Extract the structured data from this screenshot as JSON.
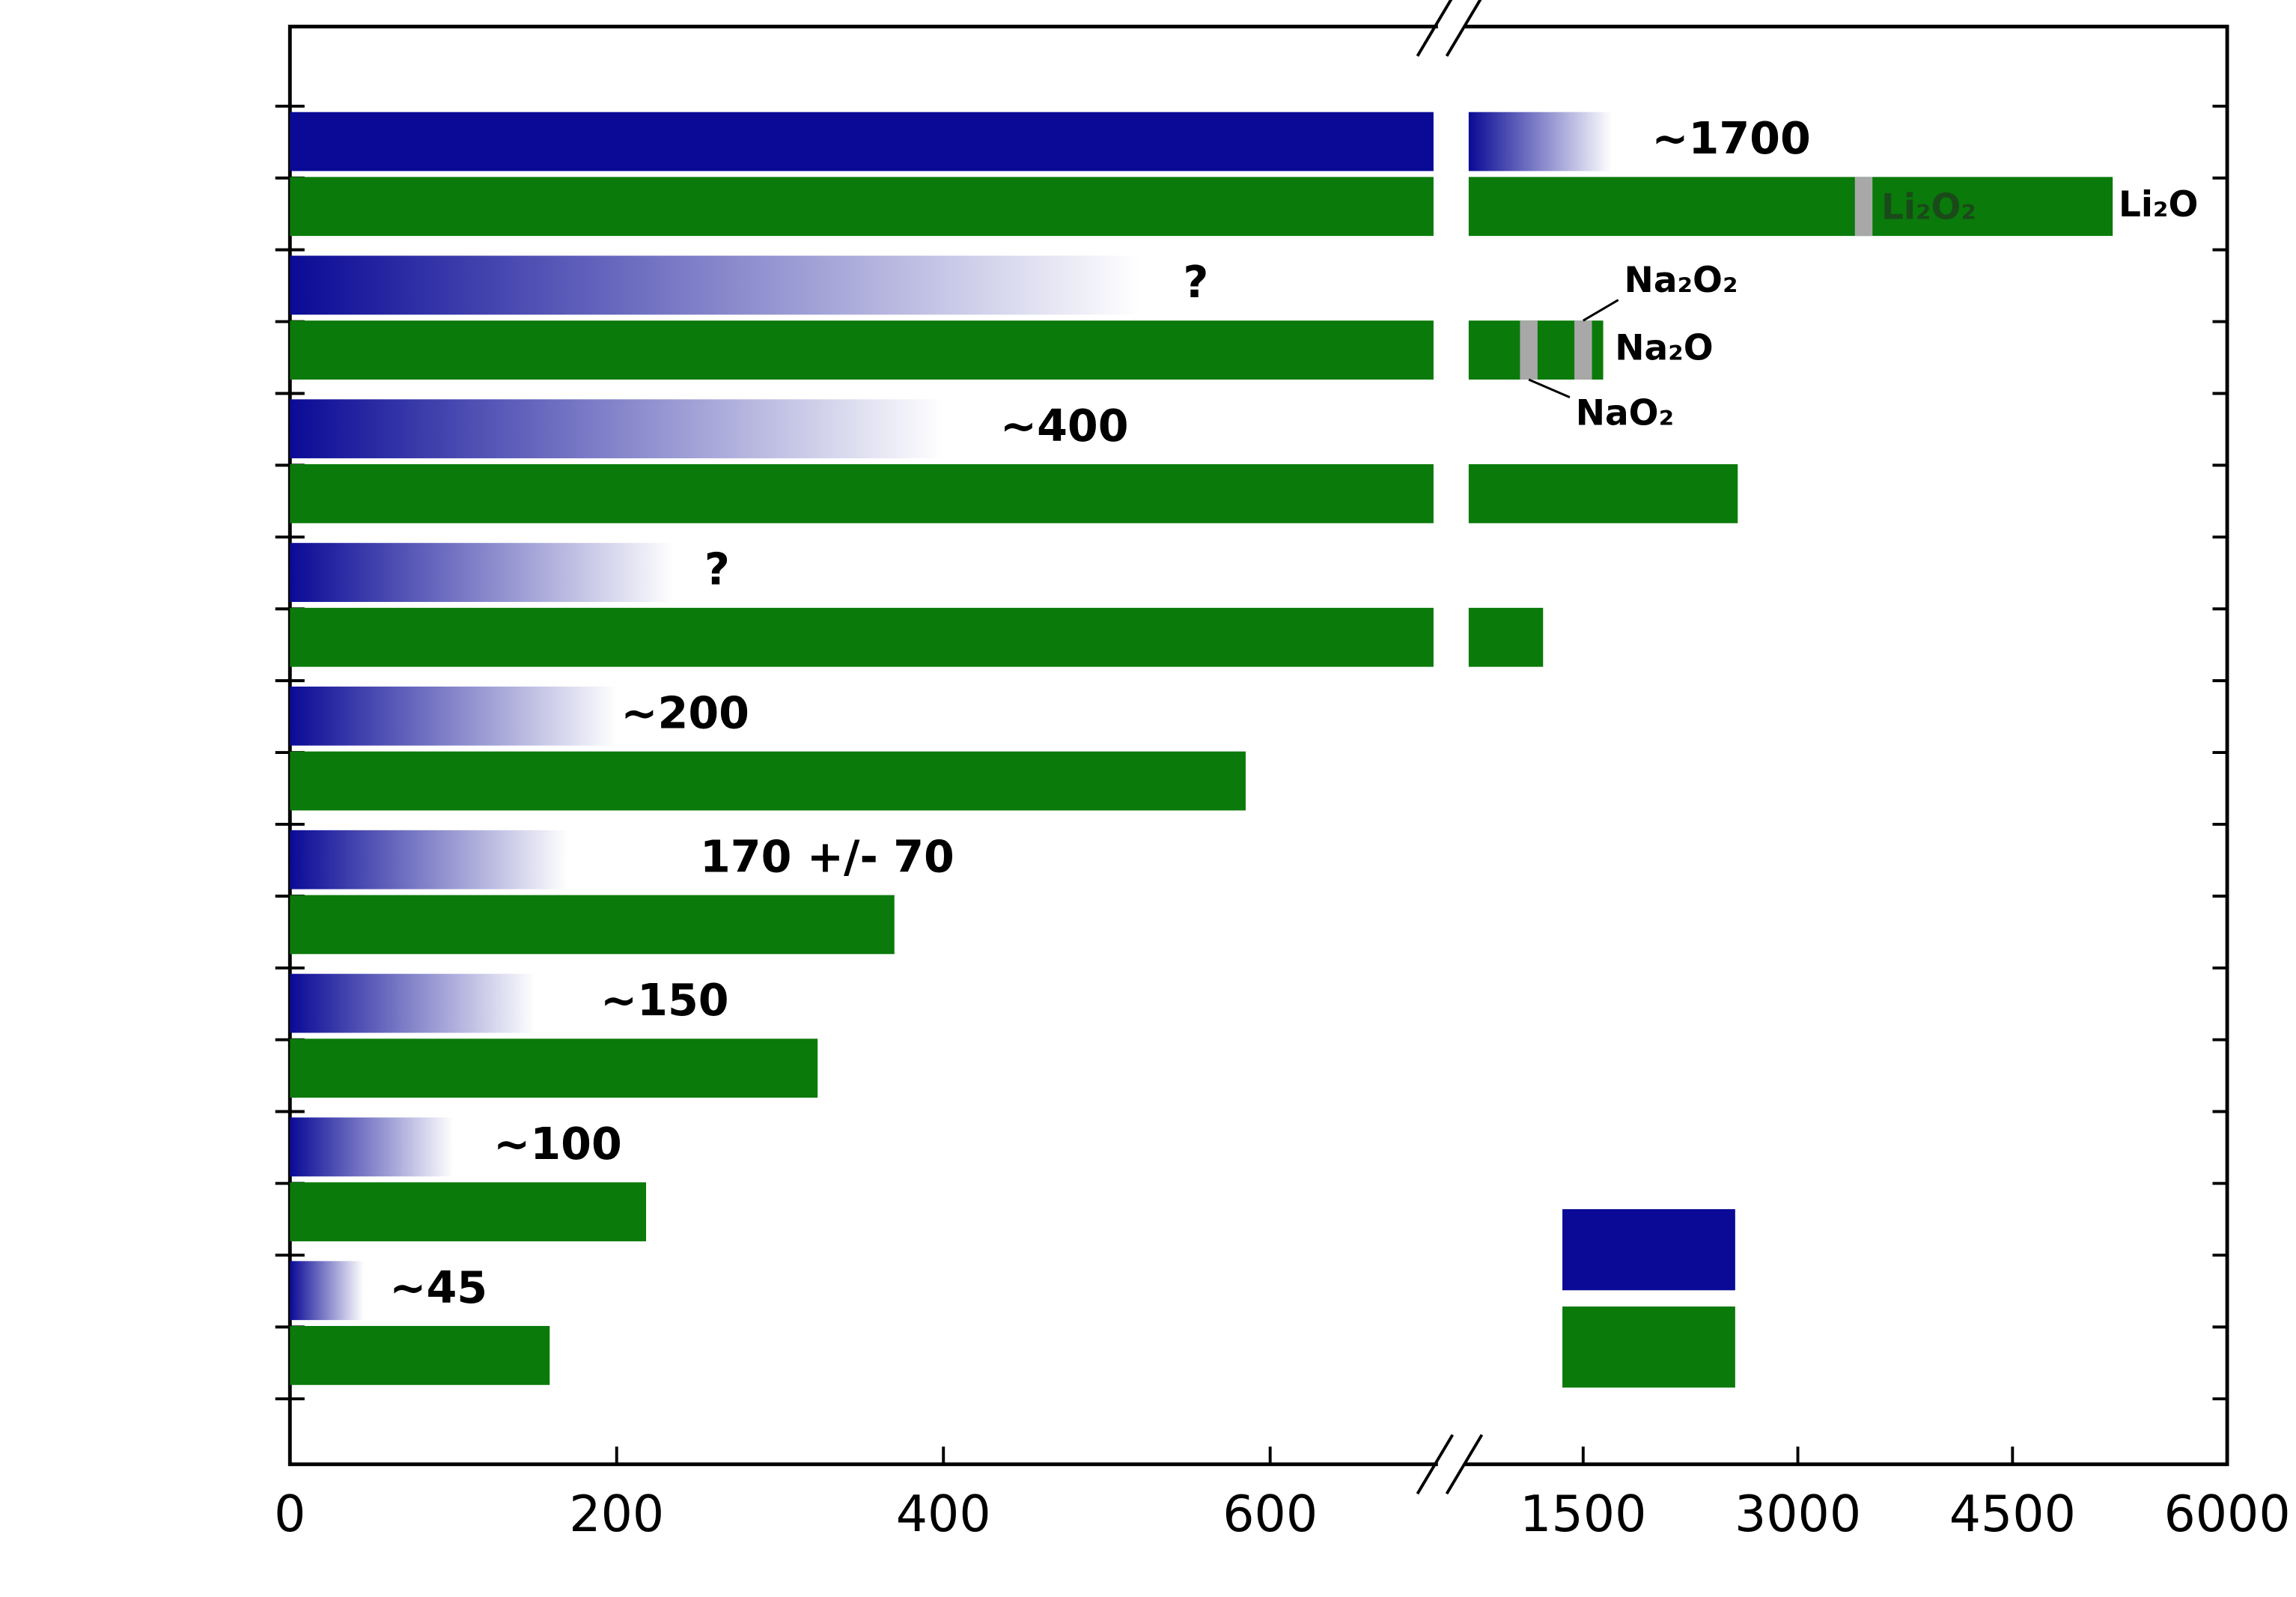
{
  "chart_data": {
    "type": "bar",
    "orientation": "horizontal",
    "broken_axis": true,
    "categories": [
      null,
      null,
      null,
      null,
      null,
      null,
      null,
      null,
      null
    ],
    "series": [
      {
        "color": "#0a0a96",
        "gradient": true,
        "values": [
          1700,
          520,
          400,
          235,
          200,
          170,
          150,
          100,
          45
        ],
        "value_labels": [
          "~1700",
          "?",
          "~400",
          "?",
          "~200",
          "170 +/- 70",
          "~150",
          "~100",
          "~45"
        ]
      },
      {
        "color": "#0a7a0a",
        "values": [
          5200,
          1640,
          2580,
          1220,
          585,
          370,
          323,
          218,
          159
        ]
      }
    ],
    "xlim": [
      0,
      700
    ],
    "xticks": [
      0,
      200,
      400,
      600
    ],
    "x2lim": [
      700,
      6000
    ],
    "x2ticks": [
      1500,
      3000,
      4500,
      6000
    ],
    "annotations": [
      {
        "text": "Li₂O₂",
        "x": 3460
      },
      {
        "text": "Li₂O",
        "x": 5200
      },
      {
        "text": "Na₂O₂",
        "x": 1500
      },
      {
        "text": "Na₂O",
        "x": 1640
      },
      {
        "text": "NaO₂",
        "x": 1120
      }
    ]
  }
}
